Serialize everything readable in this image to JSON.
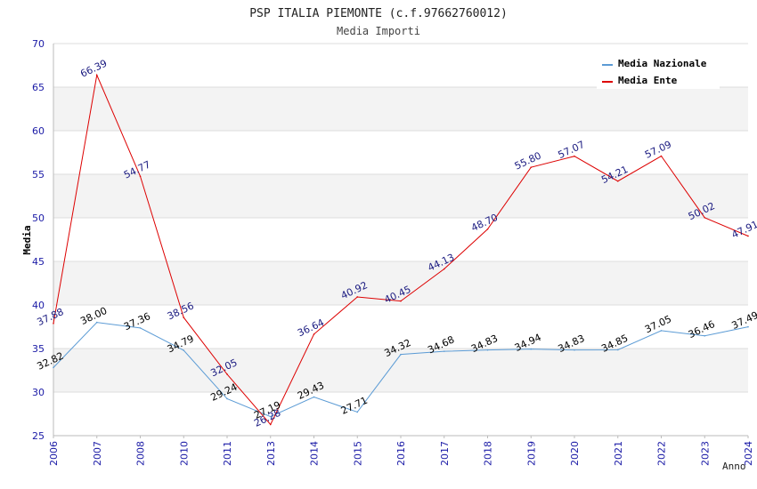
{
  "chart_data": {
    "type": "line",
    "title": "PSP ITALIA PIEMONTE (c.f.97662760012)",
    "subtitle": "Media Importi",
    "ylabel": "Media",
    "xlabel": "Anno",
    "ylim": [
      25,
      70
    ],
    "yticks": [
      "25",
      "30",
      "35",
      "40",
      "45",
      "50",
      "55",
      "60",
      "65",
      "70"
    ],
    "categories": [
      "2006",
      "2007",
      "2008",
      "2010",
      "2011",
      "2013",
      "2014",
      "2015",
      "2016",
      "2017",
      "2018",
      "2019",
      "2020",
      "2021",
      "2022",
      "2023",
      "2024"
    ],
    "series": [
      {
        "name": "Media Nazionale",
        "color": "#5b9bd5",
        "values": [
          32.82,
          38.0,
          37.36,
          34.79,
          29.24,
          27.19,
          29.43,
          27.71,
          34.32,
          34.68,
          34.83,
          34.94,
          34.83,
          34.85,
          37.05,
          36.46,
          37.49
        ],
        "labels": [
          "32.82",
          "38.00",
          "37.36",
          "34.79",
          "29.24",
          "27.19",
          "29.43",
          "27.71",
          "34.32",
          "34.68",
          "34.83",
          "34.94",
          "34.83",
          "34.85",
          "37.05",
          "36.46",
          "37.49"
        ]
      },
      {
        "name": "Media Ente",
        "color": "#dd0000",
        "values": [
          37.88,
          66.39,
          54.77,
          38.56,
          32.05,
          26.28,
          36.64,
          40.92,
          40.45,
          44.13,
          48.7,
          55.8,
          57.07,
          54.21,
          57.09,
          50.02,
          47.91
        ],
        "labels": [
          "37.88",
          "66.39",
          "54.77",
          "38.56",
          "32.05",
          "26.28",
          "36.64",
          "40.92",
          "40.45",
          "44.13",
          "48.70",
          "55.80",
          "57.07",
          "54.21",
          "57.09",
          "50.02",
          "47.91"
        ]
      }
    ],
    "legend_position": "top-right",
    "grid": true
  }
}
